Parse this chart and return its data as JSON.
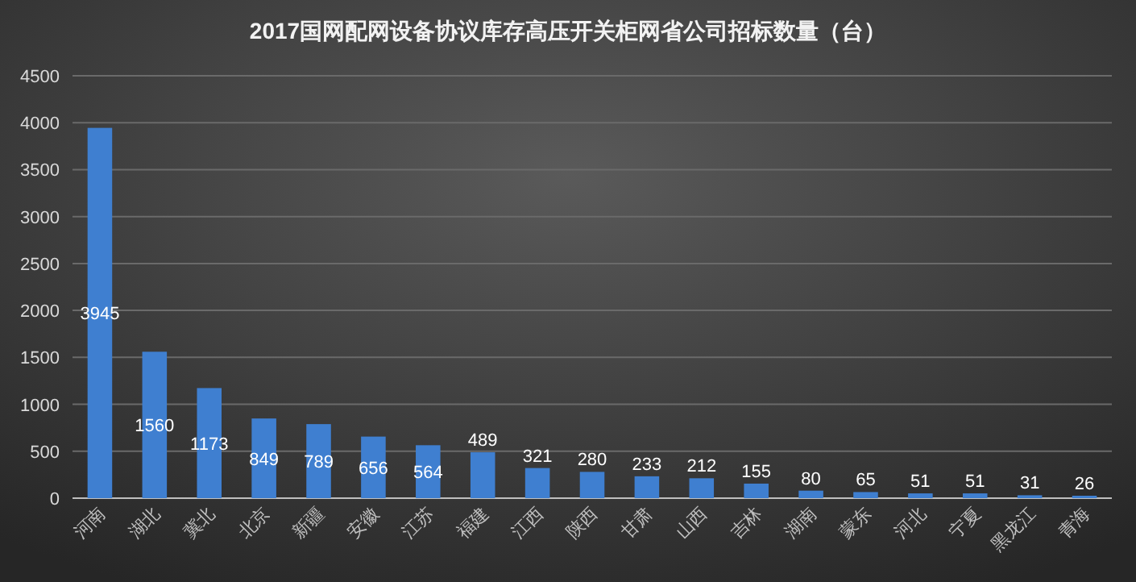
{
  "chart_data": {
    "type": "bar",
    "title": "2017国网配网设备协议库存高压开关柜网省公司招标数量（台）",
    "categories": [
      "河南",
      "湖北",
      "冀北",
      "北京",
      "新疆",
      "安徽",
      "江苏",
      "福建",
      "江西",
      "陕西",
      "甘肃",
      "山西",
      "吉林",
      "湖南",
      "蒙东",
      "河北",
      "宁夏",
      "黑龙江",
      "青海"
    ],
    "values": [
      3945,
      1560,
      1173,
      849,
      789,
      656,
      564,
      489,
      321,
      280,
      233,
      212,
      155,
      80,
      65,
      51,
      51,
      31,
      26
    ],
    "color": "#3f7fd0",
    "ylim": [
      0,
      4500
    ],
    "yticks": [
      0,
      500,
      1000,
      1500,
      2000,
      2500,
      3000,
      3500,
      4000,
      4500
    ],
    "grid": "y",
    "data_labels": true
  }
}
